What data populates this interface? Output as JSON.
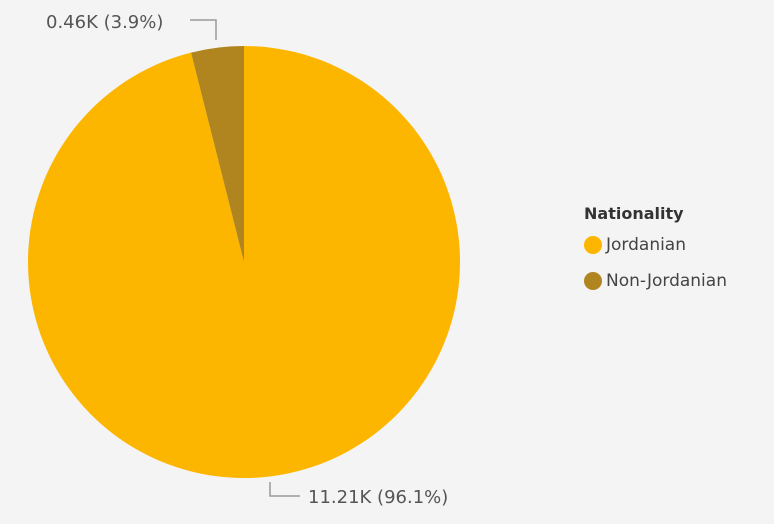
{
  "chart_data": {
    "type": "pie",
    "legend_title": "Nationality",
    "slices": [
      {
        "name": "Jordanian",
        "value": 11.21,
        "percent": 96.1,
        "label": "11.21K (96.1%)",
        "color": "#FDB600"
      },
      {
        "name": "Non-Jordanian",
        "value": 0.46,
        "percent": 3.9,
        "label": "0.46K (3.9%)",
        "color": "#B08520"
      }
    ],
    "legend_position": "right"
  },
  "colors": {
    "background": "#f4f4f4",
    "leader_line": "#9a9a9a",
    "label_text": "#555555"
  }
}
